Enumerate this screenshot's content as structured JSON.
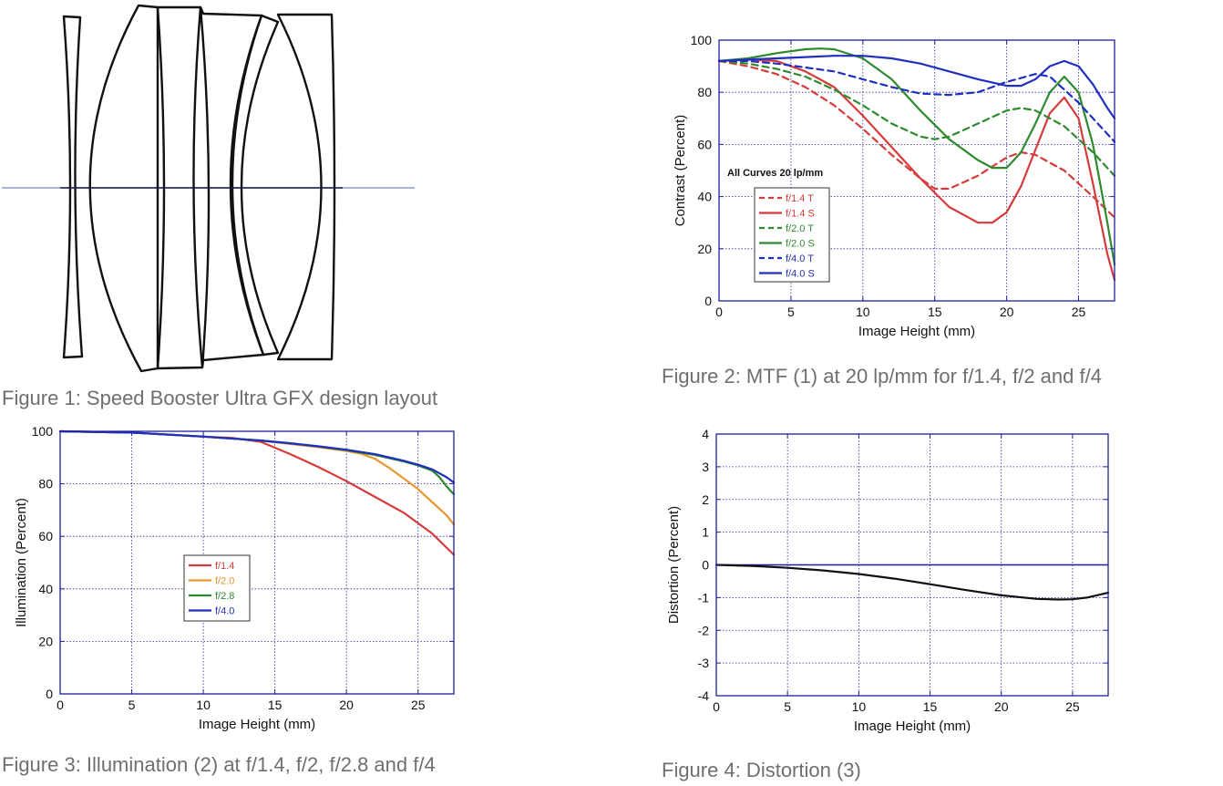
{
  "captions": {
    "fig1": "Figure 1: Speed Booster Ultra GFX design layout",
    "fig2": "Figure 2: MTF (1) at 20 lp/mm for f/1.4, f/2 and f/4",
    "fig3": "Figure 3: Illumination (2) at f/1.4, f/2, f/2.8 and f/4",
    "fig4": "Figure 4: Distortion (3)"
  },
  "colors": {
    "axis": "#1f1f9e",
    "grid": "#2a2a9e",
    "lens": "#111111",
    "optical_axis": "#8a9ad6"
  },
  "chart_data": [
    {
      "id": "mtf",
      "type": "line",
      "xlabel": "Image Height (mm)",
      "ylabel": "Contrast (Percent)",
      "xlim": [
        0,
        27.5
      ],
      "ylim": [
        0,
        100
      ],
      "xticks": [
        0,
        5,
        10,
        15,
        20,
        25
      ],
      "yticks": [
        0,
        20,
        40,
        60,
        80,
        100
      ],
      "grid": true,
      "legend_position": "left-middle",
      "annotation": "All Curves 20 lp/mm",
      "series": [
        {
          "name": "f/1.4 T",
          "color": "#d63b3b",
          "dash": true,
          "x": [
            0,
            2,
            4,
            6,
            8,
            10,
            12,
            14,
            15,
            16,
            18,
            20,
            21,
            22,
            24,
            26,
            27.5
          ],
          "y": [
            92,
            90,
            87,
            82,
            75,
            66,
            56,
            47,
            43,
            43,
            48,
            55,
            57,
            56,
            50,
            40,
            32
          ]
        },
        {
          "name": "f/1.4 S",
          "color": "#d63b3b",
          "dash": false,
          "x": [
            0,
            2,
            4,
            6,
            8,
            10,
            12,
            14,
            16,
            18,
            19,
            20,
            21,
            22,
            23,
            24,
            25,
            26,
            27,
            27.5
          ],
          "y": [
            92,
            92.5,
            92,
            88,
            82,
            71,
            59,
            47,
            36,
            30,
            30,
            34,
            44,
            58,
            72,
            78,
            70,
            45,
            18,
            8
          ]
        },
        {
          "name": "f/2.0 T",
          "color": "#2e8a2e",
          "dash": true,
          "x": [
            0,
            2,
            4,
            6,
            8,
            10,
            12,
            14,
            15,
            16,
            18,
            20,
            21,
            22,
            24,
            26,
            27.5
          ],
          "y": [
            92,
            91,
            89,
            86,
            81,
            75,
            68,
            63,
            62,
            63,
            68,
            73,
            74,
            73,
            67,
            57,
            48
          ]
        },
        {
          "name": "f/2.0 S",
          "color": "#2e8a2e",
          "dash": false,
          "x": [
            0,
            2,
            4,
            6,
            7,
            8,
            10,
            12,
            14,
            16,
            18,
            19,
            20,
            21,
            22,
            23,
            24,
            25,
            26,
            27,
            27.5
          ],
          "y": [
            92,
            93,
            95,
            96.5,
            96.8,
            96.5,
            93,
            85,
            73,
            62,
            54,
            51,
            51,
            57,
            68,
            80,
            86,
            80,
            60,
            30,
            14
          ]
        },
        {
          "name": "f/4.0 T",
          "color": "#1f2fbf",
          "dash": true,
          "x": [
            0,
            2,
            4,
            6,
            8,
            10,
            12,
            14,
            16,
            18,
            20,
            22,
            23,
            24,
            25,
            26,
            27.5
          ],
          "y": [
            92,
            92,
            91,
            89.5,
            88,
            85,
            82,
            79.5,
            79,
            80,
            84,
            87,
            86,
            81,
            76,
            70,
            61
          ]
        },
        {
          "name": "f/4.0 S",
          "color": "#1f2fbf",
          "dash": false,
          "x": [
            0,
            2,
            4,
            6,
            8,
            10,
            12,
            14,
            16,
            18,
            20,
            21,
            22,
            23,
            24,
            25,
            26,
            27,
            27.5
          ],
          "y": [
            92,
            92.5,
            93,
            93.5,
            94,
            94,
            93,
            91,
            88,
            85,
            82.5,
            82.5,
            85,
            90,
            92,
            90,
            83,
            74,
            70
          ]
        }
      ]
    },
    {
      "id": "illumination",
      "type": "line",
      "xlabel": "Image Height (mm)",
      "ylabel": "Illumination (Percent)",
      "xlim": [
        0,
        27.5
      ],
      "ylim": [
        0,
        100
      ],
      "xticks": [
        0,
        5,
        10,
        15,
        20,
        25
      ],
      "yticks": [
        0,
        20,
        40,
        60,
        80,
        100
      ],
      "grid": true,
      "legend_position": "center-left",
      "series": [
        {
          "name": "f/1.4",
          "color": "#d63b3b",
          "x": [
            0,
            5,
            10,
            12,
            14,
            16,
            18,
            20,
            22,
            24,
            26,
            27.5
          ],
          "y": [
            100,
            99.5,
            98,
            97.5,
            96,
            91.5,
            86.5,
            81,
            75,
            69,
            61,
            53
          ]
        },
        {
          "name": "f/2.0",
          "color": "#e8962e",
          "x": [
            0,
            5,
            10,
            14,
            16,
            18,
            20,
            21,
            22,
            23,
            24,
            25,
            26,
            27,
            27.5
          ],
          "y": [
            100,
            99.5,
            98,
            96.5,
            95.2,
            94,
            92.5,
            91.5,
            89.5,
            86,
            82,
            78,
            73,
            68,
            64.5
          ]
        },
        {
          "name": "f/2.8",
          "color": "#2e8a2e",
          "x": [
            0,
            5,
            10,
            14,
            16,
            18,
            20,
            22,
            24,
            25,
            26,
            26.5,
            27,
            27.5
          ],
          "y": [
            100,
            99.5,
            98,
            96.5,
            95.5,
            94.2,
            92.8,
            91,
            88.5,
            87,
            85,
            82.5,
            79,
            76
          ]
        },
        {
          "name": "f/4.0",
          "color": "#1f2fbf",
          "x": [
            0,
            5,
            10,
            14,
            16,
            18,
            20,
            22,
            24,
            25,
            26,
            27,
            27.5
          ],
          "y": [
            100,
            99.5,
            98,
            96.5,
            95.5,
            94.3,
            93,
            91.3,
            88.8,
            87.3,
            85.5,
            82.5,
            80.5
          ]
        }
      ]
    },
    {
      "id": "distortion",
      "type": "line",
      "xlabel": "Image Height (mm)",
      "ylabel": "Distortion (Percent)",
      "xlim": [
        0,
        27.5
      ],
      "ylim": [
        -4,
        4
      ],
      "xticks": [
        0,
        5,
        10,
        15,
        20,
        25
      ],
      "yticks": [
        -4,
        -3,
        -2,
        -1,
        0,
        1,
        2,
        3,
        4
      ],
      "grid": true,
      "series": [
        {
          "color": "#111111",
          "x": [
            0,
            2.5,
            5,
            7.5,
            10,
            12.5,
            15,
            17.5,
            20,
            22.5,
            24,
            25,
            26,
            27,
            27.5
          ],
          "y": [
            0,
            -0.03,
            -0.09,
            -0.17,
            -0.28,
            -0.42,
            -0.59,
            -0.77,
            -0.93,
            -1.04,
            -1.06,
            -1.05,
            -1.0,
            -0.9,
            -0.85
          ]
        }
      ]
    }
  ]
}
